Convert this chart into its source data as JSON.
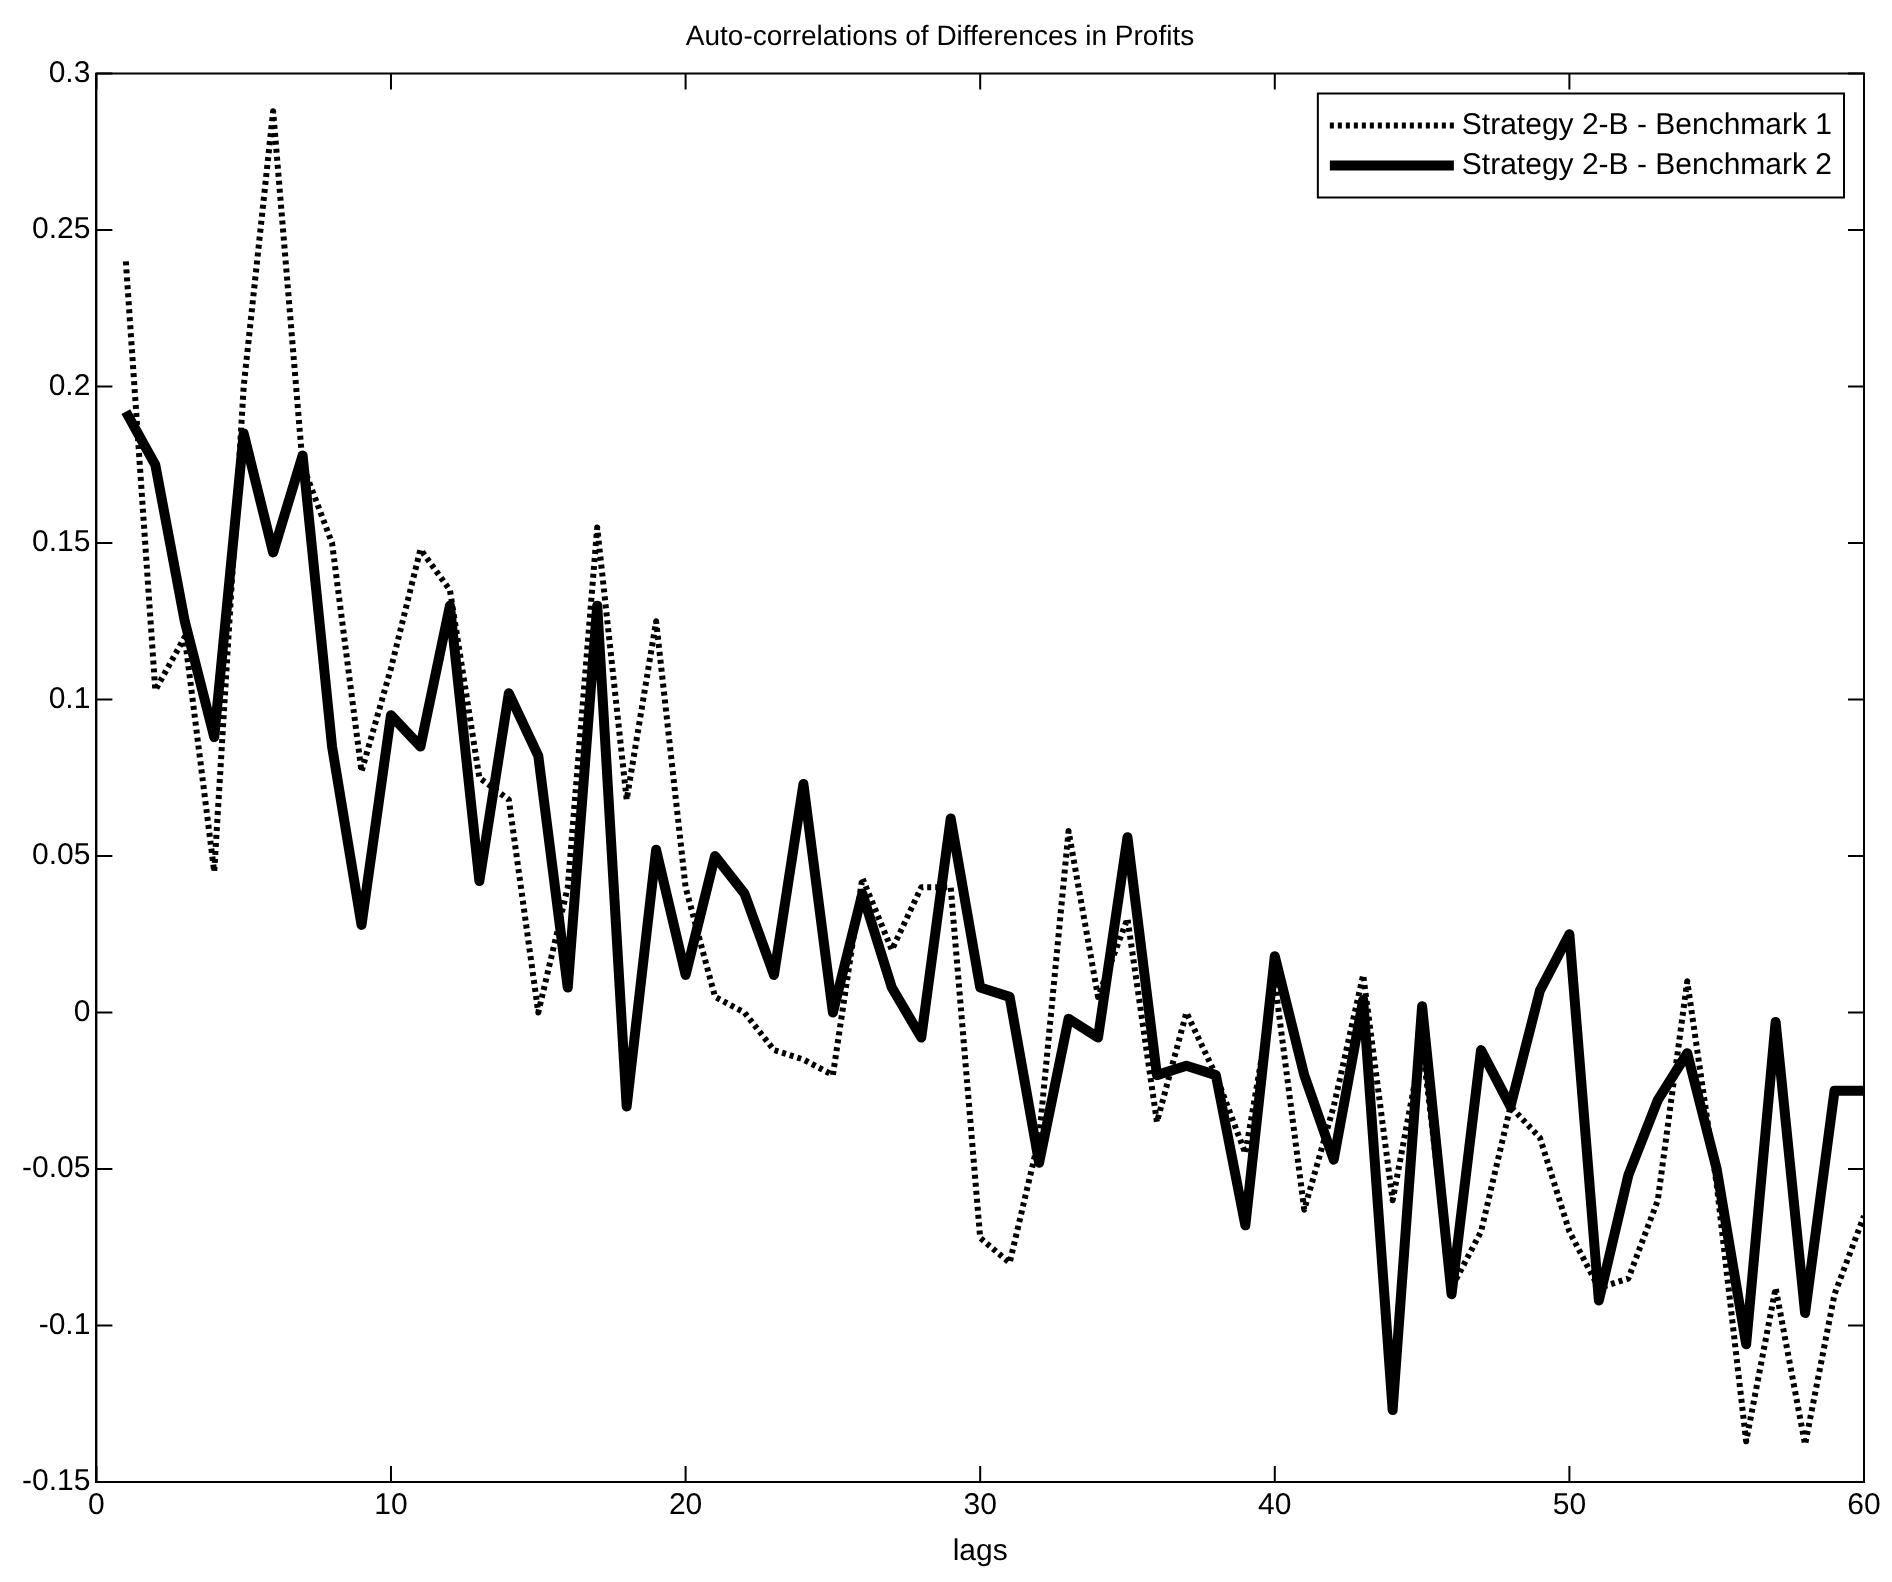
{
  "chart_data": {
    "type": "line",
    "title": "Auto-correlations of Differences in Profits",
    "xlabel": "lags",
    "x": [
      1,
      2,
      3,
      4,
      5,
      6,
      7,
      8,
      9,
      10,
      11,
      12,
      13,
      14,
      15,
      16,
      17,
      18,
      19,
      20,
      21,
      22,
      23,
      24,
      25,
      26,
      27,
      28,
      29,
      30,
      31,
      32,
      33,
      34,
      35,
      36,
      37,
      38,
      39,
      40,
      41,
      42,
      43,
      44,
      45,
      46,
      47,
      48,
      49,
      50,
      51,
      52,
      53,
      54,
      55,
      56,
      57,
      58,
      59,
      60
    ],
    "series": [
      {
        "name": "Strategy 2-B - Benchmark 1",
        "color": "#000000",
        "line_style": "dotted",
        "values": [
          0.24,
          0.103,
          0.12,
          0.045,
          0.2,
          0.288,
          0.175,
          0.15,
          0.077,
          0.11,
          0.148,
          0.135,
          0.075,
          0.068,
          0.0,
          0.04,
          0.155,
          0.068,
          0.125,
          0.04,
          0.005,
          0.0,
          -0.012,
          -0.015,
          -0.02,
          0.043,
          0.02,
          0.04,
          0.04,
          -0.072,
          -0.08,
          -0.04,
          0.058,
          0.005,
          0.03,
          -0.035,
          0.0,
          -0.02,
          -0.045,
          0.01,
          -0.063,
          -0.03,
          0.012,
          -0.06,
          -0.01,
          -0.088,
          -0.07,
          -0.03,
          -0.04,
          -0.07,
          -0.088,
          -0.085,
          -0.06,
          0.01,
          -0.055,
          -0.137,
          -0.088,
          -0.138,
          -0.09,
          -0.065
        ]
      },
      {
        "name": "Strategy 2-B - Benchmark 2",
        "color": "#000000",
        "line_style": "solid",
        "values": [
          0.192,
          0.175,
          0.125,
          0.088,
          0.185,
          0.147,
          0.178,
          0.085,
          0.028,
          0.095,
          0.085,
          0.13,
          0.042,
          0.102,
          0.082,
          0.008,
          0.13,
          -0.03,
          0.052,
          0.012,
          0.05,
          0.038,
          0.012,
          0.073,
          0.0,
          0.038,
          0.008,
          -0.008,
          0.062,
          0.008,
          0.005,
          -0.048,
          -0.002,
          -0.008,
          0.056,
          -0.02,
          -0.017,
          -0.02,
          -0.068,
          0.018,
          -0.02,
          -0.047,
          0.004,
          -0.127,
          0.002,
          -0.09,
          -0.012,
          -0.03,
          0.007,
          0.025,
          -0.092,
          -0.052,
          -0.028,
          -0.013,
          -0.05,
          -0.106,
          -0.003,
          -0.096,
          -0.025,
          -0.025
        ]
      }
    ],
    "xlim": [
      0,
      60
    ],
    "xticks": [
      0,
      10,
      20,
      30,
      40,
      50,
      60
    ],
    "ylim": [
      -0.15,
      0.3
    ],
    "yticks": [
      -0.15,
      -0.1,
      -0.05,
      0,
      0.05,
      0.1,
      0.15,
      0.2,
      0.25,
      0.3
    ],
    "grid": false,
    "legend": "top right",
    "marker": "none"
  }
}
